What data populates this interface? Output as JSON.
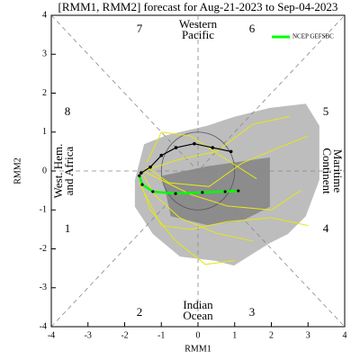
{
  "chart_data": {
    "type": "phase",
    "title": "[RMM1, RMM2] forecast for Aug-21-2023 to Sep-04-2023",
    "xlabel": "RMM1",
    "ylabel": "RMM2",
    "xlim": [
      -4,
      4
    ],
    "ylim": [
      -4,
      4
    ],
    "xticks": [
      -4,
      -3,
      -2,
      -1,
      0,
      1,
      2,
      3,
      4
    ],
    "yticks": [
      -4,
      -3,
      -2,
      -1,
      0,
      1,
      2,
      3,
      4
    ],
    "phases": [
      "1",
      "2",
      "3",
      "4",
      "5",
      "6",
      "7",
      "8"
    ],
    "regions": [
      [
        "West. Hem.",
        "and Africa"
      ],
      [
        "Indian",
        "Ocean"
      ],
      [
        "Maritime",
        "Continent"
      ],
      [
        "Western",
        "Pacific"
      ]
    ],
    "shading": [
      {
        "color": "#bdbdbd",
        "x": [
          -1.72,
          -1.47,
          -0.86,
          0.25,
          0.98,
          1.96,
          2.94,
          3.31,
          3.31,
          2.94,
          2.45,
          1.96,
          0.98,
          0.49,
          -0.49,
          -1.23,
          -1.72
        ],
        "y": [
          -0.23,
          0.69,
          0.92,
          1.16,
          1.39,
          1.62,
          1.73,
          1.16,
          -0.23,
          -1.16,
          -1.62,
          -1.85,
          -2.43,
          -2.31,
          -2.2,
          -1.62,
          -0.92
        ]
      },
      {
        "color": "#8c8c8c",
        "x": [
          -0.98,
          0.25,
          1.96,
          1.96,
          1.23,
          0.25,
          -0.74
        ],
        "y": [
          -0.12,
          0.12,
          0.35,
          -0.92,
          -1.27,
          -1.39,
          -1.16
        ]
      }
    ],
    "members": [
      {
        "color": "#e6e619",
        "x": [
          -1.5,
          -0.5,
          0.5,
          1.5,
          2.5
        ],
        "y": [
          0,
          0.3,
          0.5,
          1.2,
          1.4
        ]
      },
      {
        "color": "#e6e619",
        "x": [
          -1.5,
          -1.2,
          -0.5,
          0.5,
          1.5
        ],
        "y": [
          -0.1,
          -0.6,
          -1.2,
          -1.6,
          -1.8
        ]
      },
      {
        "color": "#e6e619",
        "x": [
          -1.4,
          -0.8,
          0.3,
          1.2,
          2.2,
          3.0
        ],
        "y": [
          0.1,
          -0.3,
          -0.4,
          0.2,
          0.6,
          0.9
        ]
      },
      {
        "color": "#e6e619",
        "x": [
          -1.6,
          -1.3,
          -0.6,
          0.2,
          1.0
        ],
        "y": [
          -0.2,
          -1.0,
          -1.8,
          -2.4,
          -2.3
        ]
      },
      {
        "color": "#e6e619",
        "x": [
          -1.5,
          -0.2,
          0.8,
          2.0,
          2.8
        ],
        "y": [
          0,
          -0.6,
          -0.9,
          -1.0,
          -0.5
        ]
      },
      {
        "color": "#e6e619",
        "x": [
          -1.4,
          -1.0,
          -0.2,
          0.6,
          1.6
        ],
        "y": [
          0.2,
          1.0,
          0.9,
          0.4,
          -0.2
        ]
      },
      {
        "color": "#e6e619",
        "x": [
          -1.6,
          -1.0,
          -0.2,
          0.8,
          2.0,
          3.0
        ],
        "y": [
          -0.3,
          -1.4,
          -1.5,
          -1.3,
          -1.2,
          -1.4
        ]
      }
    ],
    "observed": {
      "color": "#000000",
      "x": [
        0.9,
        0.4,
        -0.1,
        -0.6,
        -1.0,
        -1.3,
        -1.55
      ],
      "y": [
        0.5,
        0.6,
        0.7,
        0.6,
        0.4,
        0.1,
        -0.05
      ]
    },
    "series": [
      {
        "name": "NCEP GEFSBC",
        "color": "#00ff00",
        "x": [
          -1.6,
          -1.52,
          -1.23,
          -0.61,
          0.12,
          0.74,
          1.1
        ],
        "y": [
          -0.12,
          -0.35,
          -0.53,
          -0.58,
          -0.55,
          -0.53,
          -0.51
        ]
      }
    ]
  }
}
